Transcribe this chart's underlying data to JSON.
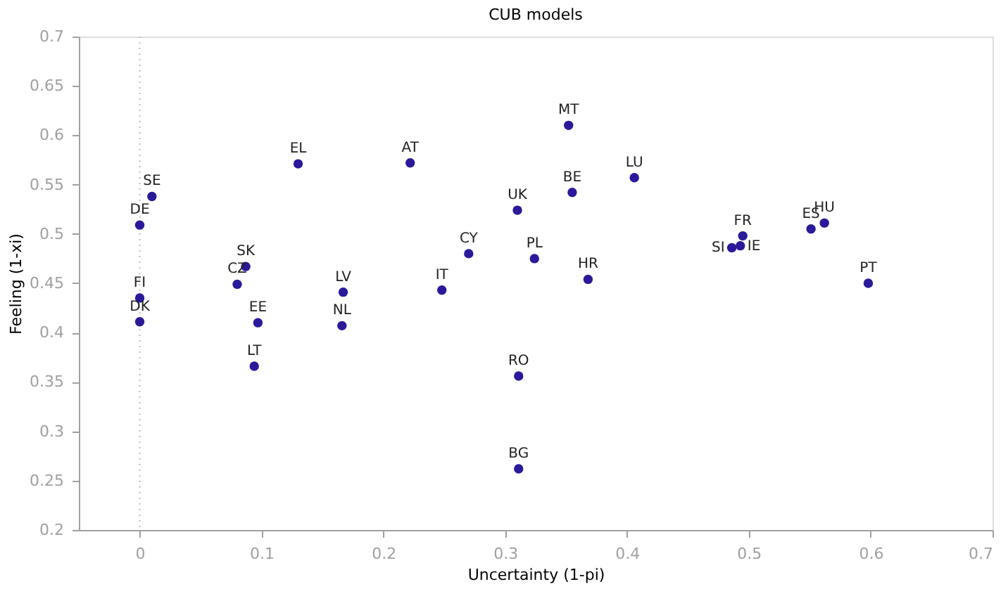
{
  "chart_data": {
    "type": "scatter",
    "title": "CUB models",
    "xlabel": "Uncertainty (1-pi)",
    "ylabel": "Feeling (1-xi)",
    "x": [
      0.01,
      0.0,
      0.0,
      0.0,
      0.087,
      0.08,
      0.097,
      0.094,
      0.13,
      0.167,
      0.166,
      0.222,
      0.248,
      0.27,
      0.31,
      0.311,
      0.311,
      0.324,
      0.352,
      0.355,
      0.406,
      0.368,
      0.495,
      0.486,
      0.493,
      0.551,
      0.562,
      0.598
    ],
    "series": [
      {
        "color": "#2a1a9a",
        "values": [
          0.538,
          0.509,
          0.435,
          0.411,
          0.467,
          0.449,
          0.41,
          0.366,
          0.571,
          0.441,
          0.407,
          0.572,
          0.443,
          0.48,
          0.524,
          0.356,
          0.262,
          0.475,
          0.61,
          0.542,
          0.557,
          0.454,
          0.498,
          0.486,
          0.488,
          0.505,
          0.511,
          0.45
        ]
      }
    ],
    "annotations": [
      {
        "text": "SE",
        "x": 0.01,
        "y": 0.538
      },
      {
        "text": "DE",
        "x": 0.0,
        "y": 0.509
      },
      {
        "text": "FI",
        "x": 0.0,
        "y": 0.435
      },
      {
        "text": "DK",
        "x": 0.0,
        "y": 0.411
      },
      {
        "text": "SK",
        "x": 0.087,
        "y": 0.467
      },
      {
        "text": "CZ",
        "x": 0.08,
        "y": 0.449
      },
      {
        "text": "EE",
        "x": 0.097,
        "y": 0.41
      },
      {
        "text": "LT",
        "x": 0.094,
        "y": 0.366
      },
      {
        "text": "EL",
        "x": 0.13,
        "y": 0.571
      },
      {
        "text": "LV",
        "x": 0.167,
        "y": 0.441
      },
      {
        "text": "NL",
        "x": 0.166,
        "y": 0.407
      },
      {
        "text": "AT",
        "x": 0.222,
        "y": 0.572
      },
      {
        "text": "IT",
        "x": 0.248,
        "y": 0.443
      },
      {
        "text": "CY",
        "x": 0.27,
        "y": 0.48
      },
      {
        "text": "UK",
        "x": 0.31,
        "y": 0.524
      },
      {
        "text": "RO",
        "x": 0.311,
        "y": 0.356
      },
      {
        "text": "BG",
        "x": 0.311,
        "y": 0.262
      },
      {
        "text": "PL",
        "x": 0.324,
        "y": 0.475
      },
      {
        "text": "MT",
        "x": 0.352,
        "y": 0.61
      },
      {
        "text": "BE",
        "x": 0.355,
        "y": 0.542
      },
      {
        "text": "LU",
        "x": 0.406,
        "y": 0.557
      },
      {
        "text": "HR",
        "x": 0.368,
        "y": 0.454
      },
      {
        "text": "FR",
        "x": 0.495,
        "y": 0.498
      },
      {
        "text": "SI",
        "x": 0.486,
        "y": 0.486
      },
      {
        "text": "IE",
        "x": 0.493,
        "y": 0.488
      },
      {
        "text": "ES",
        "x": 0.551,
        "y": 0.505
      },
      {
        "text": "HU",
        "x": 0.562,
        "y": 0.511
      },
      {
        "text": "PT",
        "x": 0.598,
        "y": 0.45
      }
    ],
    "ref_lines": [
      {
        "axis": "x",
        "value": 0,
        "color": "#bbbbbb",
        "line_style": "dotted"
      }
    ],
    "xlim": [
      -0.05,
      0.7
    ],
    "xticks": [
      0,
      0.1,
      0.2,
      0.3,
      0.4,
      0.5,
      0.6,
      0.7
    ],
    "ylim": [
      0.2,
      0.7
    ],
    "yticks": [
      0.2,
      0.25,
      0.3,
      0.35,
      0.4,
      0.45,
      0.5,
      0.55,
      0.6,
      0.65,
      0.7
    ],
    "marker": "circle",
    "grid": false
  }
}
